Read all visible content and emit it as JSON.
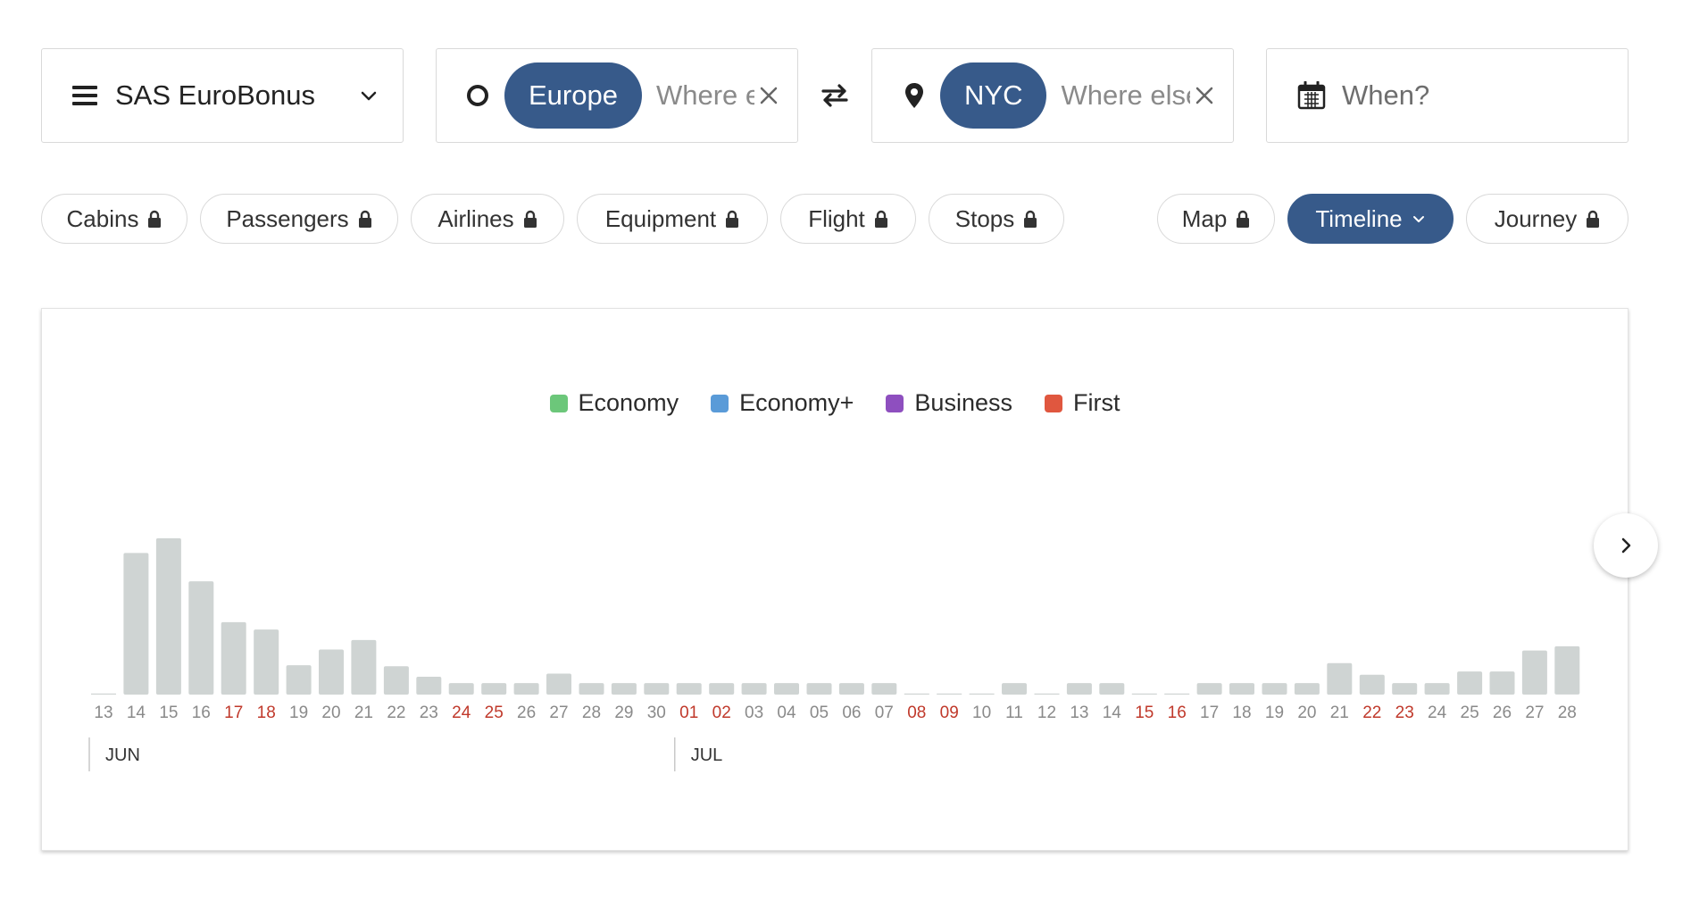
{
  "search": {
    "program": "SAS EuroBonus",
    "origin_tag": "Europe",
    "origin_placeholder": "Where else?",
    "destination_tag": "NYC",
    "destination_placeholder": "Where else?",
    "when_placeholder": "When?"
  },
  "filters": {
    "chips": [
      "Cabins",
      "Passengers",
      "Airlines",
      "Equipment",
      "Flight",
      "Stops"
    ],
    "views": [
      "Map",
      "Timeline",
      "Journey"
    ],
    "active_view": "Timeline"
  },
  "legend": [
    {
      "label": "Economy",
      "color": "#6cc77a"
    },
    {
      "label": "Economy+",
      "color": "#5a9bd8"
    },
    {
      "label": "Business",
      "color": "#8e4fbf"
    },
    {
      "label": "First",
      "color": "#e0573f"
    }
  ],
  "colors": {
    "bar": "#cfd4d3",
    "weekend_label": "#c0392b",
    "weekday_label": "#8a8a8a",
    "accent": "#375a8a"
  },
  "chart_data": {
    "type": "bar",
    "months": [
      {
        "label": "JUN",
        "start_index": 0
      },
      {
        "label": "JUL",
        "start_index": 18
      }
    ],
    "categories": [
      "13",
      "14",
      "15",
      "16",
      "17",
      "18",
      "19",
      "20",
      "21",
      "22",
      "23",
      "24",
      "25",
      "26",
      "27",
      "28",
      "29",
      "30",
      "01",
      "02",
      "03",
      "04",
      "05",
      "06",
      "07",
      "08",
      "09",
      "10",
      "11",
      "12",
      "13",
      "14",
      "15",
      "16",
      "17",
      "18",
      "19",
      "20",
      "21",
      "22",
      "23",
      "24",
      "25",
      "26",
      "27",
      "28"
    ],
    "weekend": [
      false,
      false,
      false,
      false,
      true,
      true,
      false,
      false,
      false,
      false,
      false,
      true,
      true,
      false,
      false,
      false,
      false,
      false,
      true,
      true,
      false,
      false,
      false,
      false,
      false,
      true,
      true,
      false,
      false,
      false,
      false,
      false,
      true,
      true,
      false,
      false,
      false,
      false,
      false,
      true,
      true,
      false,
      false,
      false,
      false,
      false
    ],
    "values": [
      1,
      135,
      149,
      108,
      69,
      62,
      28,
      43,
      52,
      27,
      17,
      11,
      11,
      11,
      20,
      11,
      11,
      11,
      11,
      11,
      11,
      11,
      11,
      11,
      11,
      1,
      1,
      1,
      11,
      1,
      11,
      11,
      1,
      1,
      11,
      11,
      11,
      11,
      30,
      19,
      11,
      11,
      22,
      22,
      42,
      46
    ],
    "ylim": [
      0,
      160
    ],
    "xlabel": "",
    "ylabel": ""
  }
}
